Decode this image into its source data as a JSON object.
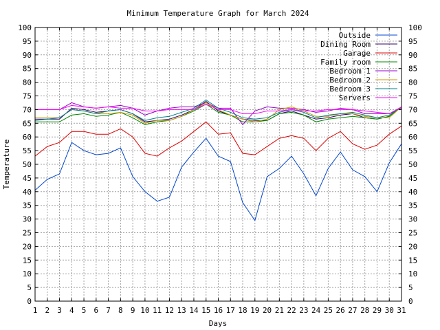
{
  "chart_data": {
    "type": "line",
    "title": "Minimum Temperature Graph for March 2024",
    "xlabel": "Days",
    "ylabel": "Temperature",
    "xlim": [
      1,
      31
    ],
    "ylim": [
      0,
      100
    ],
    "yticks": [
      0,
      5,
      10,
      15,
      20,
      25,
      30,
      35,
      40,
      45,
      50,
      55,
      60,
      65,
      70,
      75,
      80,
      85,
      90,
      95,
      100
    ],
    "xticks": [
      1,
      2,
      3,
      4,
      5,
      6,
      7,
      8,
      9,
      10,
      11,
      12,
      13,
      14,
      15,
      16,
      17,
      18,
      19,
      20,
      21,
      22,
      23,
      24,
      25,
      26,
      27,
      28,
      29,
      30,
      31
    ],
    "grid": true,
    "legend_position": "top-right",
    "x": [
      1,
      2,
      3,
      4,
      5,
      6,
      7,
      8,
      9,
      10,
      11,
      12,
      13,
      14,
      15,
      16,
      17,
      18,
      19,
      20,
      21,
      22,
      23,
      24,
      25,
      26,
      27,
      28,
      29,
      30,
      31
    ],
    "series": [
      {
        "name": "Outside",
        "color": "#0044cc",
        "values": [
          40.5,
          44.5,
          46.5,
          58,
          55,
          53.5,
          54,
          56,
          45.5,
          40,
          36.5,
          38,
          49,
          54.5,
          59.5,
          53,
          51,
          36,
          29.5,
          45.5,
          48.5,
          53,
          46.5,
          38.5,
          48.5,
          54.5,
          48,
          45.5,
          40,
          50.5,
          57.5
        ]
      },
      {
        "name": "Dining Room",
        "color": "#330066",
        "values": [
          66.5,
          66.5,
          66.5,
          70.5,
          70,
          69,
          69.5,
          70,
          68.5,
          65.5,
          66,
          66.5,
          68,
          70,
          73,
          69.5,
          68,
          66.5,
          66,
          66,
          68.5,
          69.5,
          68,
          66.5,
          67,
          68,
          68.5,
          67,
          66.5,
          67.5,
          71
        ]
      },
      {
        "name": "Garage",
        "color": "#dd0000",
        "values": [
          53,
          56.5,
          58,
          62,
          62,
          61,
          61,
          63,
          60,
          54,
          53,
          56,
          58.5,
          62,
          65.5,
          61,
          61.5,
          54,
          53.5,
          56.5,
          59.5,
          60.5,
          59.5,
          55,
          59.5,
          62,
          57.5,
          55.5,
          57,
          61,
          64
        ]
      },
      {
        "name": "Family room",
        "color": "#008800",
        "values": [
          65.5,
          65.5,
          65.5,
          68,
          68.5,
          67.5,
          68,
          69,
          67,
          64.5,
          65.5,
          66,
          67.5,
          69.5,
          72,
          69,
          68,
          65.5,
          65.5,
          66,
          68.5,
          69,
          68,
          65.5,
          66.5,
          67,
          67.5,
          67,
          66.5,
          67.5,
          71
        ]
      },
      {
        "name": "Bedroom 1",
        "color": "#9900cc",
        "values": [
          70,
          70,
          70,
          72.5,
          71,
          70.5,
          71,
          71.5,
          70.5,
          68,
          69.5,
          70.5,
          71,
          71,
          72.5,
          70.5,
          70.5,
          64.5,
          69.5,
          71,
          70.5,
          70.5,
          70,
          69,
          69.5,
          70.5,
          70,
          68.5,
          68.5,
          68.5,
          70.5
        ]
      },
      {
        "name": "Bedroom 2",
        "color": "#cc9900",
        "values": [
          67,
          67,
          67,
          70,
          69.5,
          68.5,
          68.5,
          69,
          68,
          65,
          66,
          66,
          67.5,
          70,
          72.5,
          70,
          68,
          66.5,
          65.5,
          66.5,
          70,
          71,
          69.5,
          67.5,
          67.5,
          68.5,
          68.5,
          67.5,
          67,
          67,
          71
        ]
      },
      {
        "name": "Bedroom 3",
        "color": "#00808a",
        "values": [
          66,
          66.5,
          67,
          70,
          69.5,
          68.5,
          69.5,
          70,
          68.5,
          66,
          67,
          67.5,
          69,
          70.5,
          73.5,
          70.5,
          69,
          67,
          66.5,
          67,
          69,
          70,
          69,
          67,
          68,
          68.5,
          69,
          68,
          67,
          68,
          71
        ]
      },
      {
        "name": "Servers",
        "color": "#ff00ff",
        "values": [
          70,
          70,
          70,
          71.5,
          71,
          70.5,
          71,
          70.5,
          70.5,
          69.5,
          69.5,
          70,
          70,
          70,
          72,
          70,
          70,
          68.5,
          68.5,
          69.5,
          69.5,
          70,
          69.5,
          69.5,
          70,
          70,
          70,
          69.5,
          69,
          68.5,
          71
        ]
      }
    ]
  }
}
